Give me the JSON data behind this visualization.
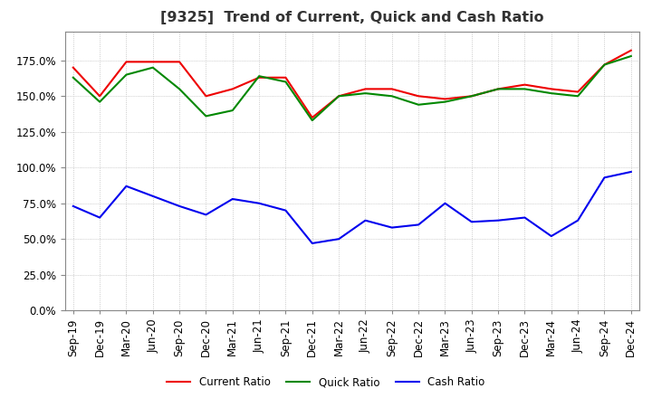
{
  "title": "[9325]  Trend of Current, Quick and Cash Ratio",
  "x_labels": [
    "Sep-19",
    "Dec-19",
    "Mar-20",
    "Jun-20",
    "Sep-20",
    "Dec-20",
    "Mar-21",
    "Jun-21",
    "Sep-21",
    "Dec-21",
    "Mar-22",
    "Jun-22",
    "Sep-22",
    "Dec-22",
    "Mar-23",
    "Jun-23",
    "Sep-23",
    "Dec-23",
    "Mar-24",
    "Jun-24",
    "Sep-24",
    "Dec-24"
  ],
  "current_ratio": [
    1.7,
    1.5,
    1.74,
    1.74,
    1.74,
    1.5,
    1.55,
    1.63,
    1.63,
    1.35,
    1.5,
    1.55,
    1.55,
    1.5,
    1.48,
    1.5,
    1.55,
    1.58,
    1.55,
    1.53,
    1.72,
    1.82
  ],
  "quick_ratio": [
    1.63,
    1.46,
    1.65,
    1.7,
    1.55,
    1.36,
    1.4,
    1.64,
    1.6,
    1.33,
    1.5,
    1.52,
    1.5,
    1.44,
    1.46,
    1.5,
    1.55,
    1.55,
    1.52,
    1.5,
    1.72,
    1.78
  ],
  "cash_ratio": [
    0.73,
    0.65,
    0.87,
    0.8,
    0.73,
    0.67,
    0.78,
    0.75,
    0.7,
    0.47,
    0.5,
    0.63,
    0.58,
    0.6,
    0.75,
    0.62,
    0.63,
    0.65,
    0.52,
    0.63,
    0.93,
    0.97
  ],
  "current_color": "#EE0000",
  "quick_color": "#008800",
  "cash_color": "#0000EE",
  "ylim": [
    0.0,
    1.95
  ],
  "yticks": [
    0.0,
    0.25,
    0.5,
    0.75,
    1.0,
    1.25,
    1.5,
    1.75
  ],
  "bg_color": "#FFFFFF",
  "grid_color": "#BBBBBB",
  "title_fontsize": 11.5,
  "tick_fontsize": 8.5,
  "legend_labels": [
    "Current Ratio",
    "Quick Ratio",
    "Cash Ratio"
  ]
}
